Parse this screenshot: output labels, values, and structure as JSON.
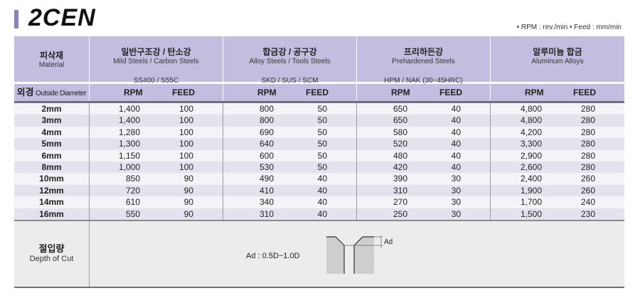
{
  "title": "2CEN",
  "units_note": "• RPM : rev./min   • Feed : mm/min",
  "colors": {
    "header": "#c3bedf",
    "accent": "#8a80bb"
  },
  "header": {
    "material_ko": "피삭재",
    "material_en": "Material",
    "diameter_ko": "외경",
    "diameter_en": "Outside Diameter",
    "rpm_label": "RPM",
    "feed_label": "FEED",
    "groups": [
      {
        "ko": "일반구조강 / 탄소강",
        "en": "Mild Steels / Carbon Steels",
        "grade": "SS400 / S55C"
      },
      {
        "ko": "합금강 / 공구강",
        "en": "Alloy Steels / Tools Steels",
        "grade": "SKD / SUS / SCM"
      },
      {
        "ko": "프리하든강",
        "en": "Prehardened Steels",
        "grade": "HPM / NAK (30~45HRC)"
      },
      {
        "ko": "알루미늄 합금",
        "en": "Aluminum Alloys",
        "grade": ""
      }
    ]
  },
  "rows": [
    {
      "d": "2mm",
      "v": [
        "1,400",
        "100",
        "800",
        "50",
        "650",
        "40",
        "4,800",
        "280"
      ]
    },
    {
      "d": "3mm",
      "v": [
        "1,400",
        "100",
        "800",
        "50",
        "650",
        "40",
        "4,800",
        "280"
      ]
    },
    {
      "d": "4mm",
      "v": [
        "1,280",
        "100",
        "690",
        "50",
        "580",
        "40",
        "4,200",
        "280"
      ]
    },
    {
      "d": "5mm",
      "v": [
        "1,300",
        "100",
        "640",
        "50",
        "520",
        "40",
        "3,300",
        "280"
      ]
    },
    {
      "d": "6mm",
      "v": [
        "1,150",
        "100",
        "600",
        "50",
        "480",
        "40",
        "2,900",
        "280"
      ]
    },
    {
      "d": "8mm",
      "v": [
        "1,000",
        "100",
        "530",
        "50",
        "420",
        "40",
        "2,600",
        "280"
      ]
    },
    {
      "d": "10mm",
      "v": [
        "850",
        "90",
        "490",
        "40",
        "390",
        "30",
        "2,400",
        "260"
      ]
    },
    {
      "d": "12mm",
      "v": [
        "720",
        "90",
        "410",
        "40",
        "310",
        "30",
        "1,900",
        "260"
      ]
    },
    {
      "d": "14mm",
      "v": [
        "610",
        "90",
        "340",
        "40",
        "270",
        "30",
        "1,700",
        "240"
      ]
    },
    {
      "d": "16mm",
      "v": [
        "550",
        "90",
        "310",
        "40",
        "250",
        "30",
        "1,500",
        "230"
      ]
    }
  ],
  "depth_of_cut": {
    "ko": "절입량",
    "en": "Depth of Cut",
    "formula": "Ad : 0.5D~1.0D",
    "diagram_label": "Ad"
  }
}
